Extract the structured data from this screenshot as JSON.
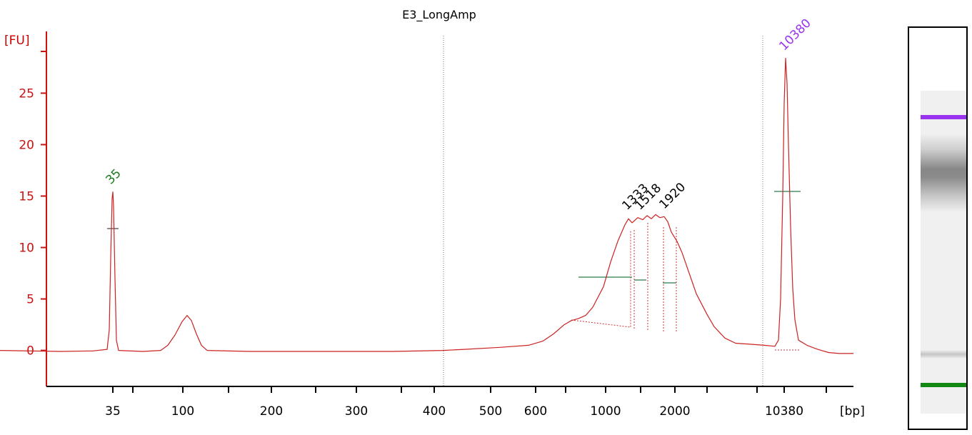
{
  "chart_data": {
    "type": "line",
    "title": "E3_LongAmp",
    "ylabel": "[FU]",
    "xlabel": "[bp]",
    "ylim": [
      -3.5,
      31
    ],
    "yticks": [
      0,
      5,
      10,
      15,
      20,
      25
    ],
    "xtick_labels": [
      "35",
      "",
      "100",
      "",
      "200",
      "",
      "300",
      "",
      "400",
      "500",
      "600",
      "",
      "1000",
      "",
      "2000",
      "",
      "",
      "10380",
      ""
    ],
    "grid": false,
    "series": [
      {
        "color": "#cc2222",
        "points": [
          [
            0,
            0
          ],
          [
            85,
            -0.1
          ],
          [
            130,
            -0.05
          ],
          [
            150,
            0.1
          ],
          [
            153,
            2
          ],
          [
            155,
            9
          ],
          [
            157,
            14.8
          ],
          [
            158,
            15.4
          ],
          [
            159,
            14
          ],
          [
            161,
            7
          ],
          [
            163,
            1
          ],
          [
            166,
            0
          ],
          [
            200,
            -0.1
          ],
          [
            225,
            0
          ],
          [
            235,
            0.5
          ],
          [
            245,
            1.5
          ],
          [
            255,
            2.8
          ],
          [
            262,
            3.4
          ],
          [
            268,
            2.9
          ],
          [
            275,
            1.6
          ],
          [
            282,
            0.5
          ],
          [
            290,
            0
          ],
          [
            350,
            -0.1
          ],
          [
            450,
            -0.1
          ],
          [
            550,
            -0.1
          ],
          [
            620,
            0
          ],
          [
            650,
            0.1
          ],
          [
            700,
            0.3
          ],
          [
            740,
            0.5
          ],
          [
            760,
            0.9
          ],
          [
            775,
            1.6
          ],
          [
            790,
            2.5
          ],
          [
            800,
            2.9
          ],
          [
            810,
            3.1
          ],
          [
            820,
            3.4
          ],
          [
            830,
            4.2
          ],
          [
            845,
            6.2
          ],
          [
            855,
            8.6
          ],
          [
            865,
            10.6
          ],
          [
            875,
            12.2
          ],
          [
            880,
            12.8
          ],
          [
            885,
            12.4
          ],
          [
            893,
            12.9
          ],
          [
            900,
            12.7
          ],
          [
            906,
            13.1
          ],
          [
            912,
            12.8
          ],
          [
            918,
            13.2
          ],
          [
            924,
            12.9
          ],
          [
            930,
            13.0
          ],
          [
            935,
            12.5
          ],
          [
            940,
            11.5
          ],
          [
            948,
            10.6
          ],
          [
            955,
            9.5
          ],
          [
            965,
            7.5
          ],
          [
            975,
            5.5
          ],
          [
            990,
            3.5
          ],
          [
            1000,
            2.3
          ],
          [
            1015,
            1.2
          ],
          [
            1030,
            0.7
          ],
          [
            1050,
            0.6
          ],
          [
            1070,
            0.5
          ],
          [
            1085,
            0.4
          ],
          [
            1090,
            1
          ],
          [
            1093,
            5
          ],
          [
            1096,
            15
          ],
          [
            1098,
            24
          ],
          [
            1100,
            28.4
          ],
          [
            1102,
            26
          ],
          [
            1104,
            20
          ],
          [
            1107,
            12
          ],
          [
            1110,
            6
          ],
          [
            1113,
            3
          ],
          [
            1118,
            1
          ],
          [
            1130,
            0.5
          ],
          [
            1145,
            0.1
          ],
          [
            1160,
            -0.2
          ],
          [
            1175,
            -0.3
          ],
          [
            1195,
            -0.3
          ]
        ]
      }
    ],
    "peak_labels": [
      {
        "label": "35",
        "x": 157,
        "y": 15.4,
        "color": "#1a7a1a"
      },
      {
        "label": "1333",
        "x": 880,
        "y": 12.9,
        "color": "#000000"
      },
      {
        "label": "1518",
        "x": 898,
        "y": 12.9,
        "color": "#000000"
      },
      {
        "label": "1920",
        "x": 932,
        "y": 13.0,
        "color": "#000000"
      },
      {
        "label": "10380",
        "x": 1100,
        "y": 28.4,
        "color": "#9933ee"
      }
    ]
  },
  "gel": {
    "upper_marker_color": "#9933ee",
    "lower_marker_color": "#118811"
  }
}
